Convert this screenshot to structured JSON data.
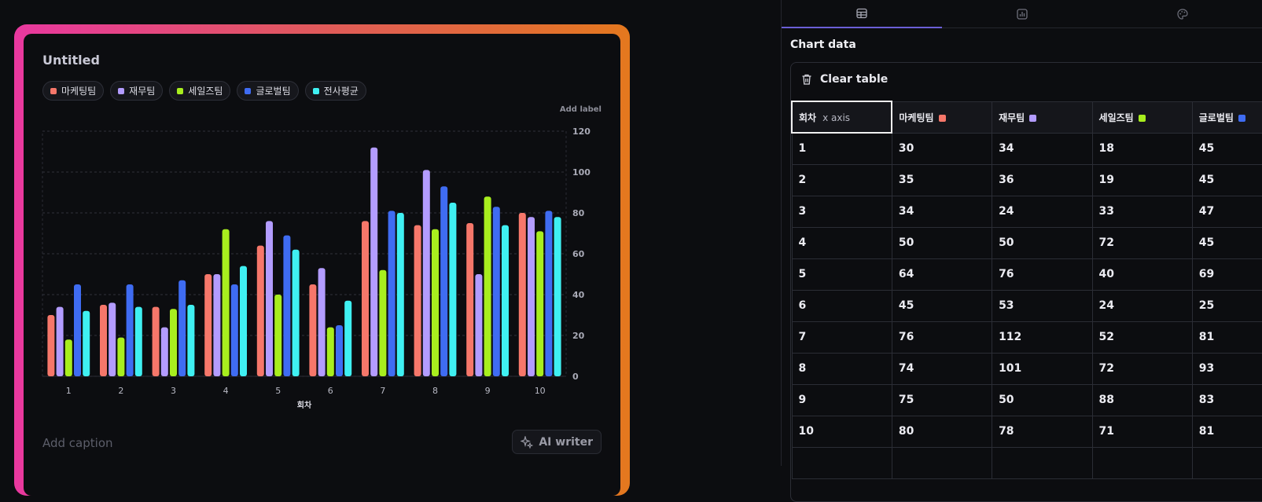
{
  "editor": {
    "title": "Untitled",
    "add_label": "Add label",
    "caption_placeholder": "Add caption",
    "ai_writer_label": "AI writer"
  },
  "legend": [
    {
      "name": "마케팅팀",
      "color": "#f6776a"
    },
    {
      "name": "재무팀",
      "color": "#b39cff"
    },
    {
      "name": "세일즈팀",
      "color": "#a8ee1e"
    },
    {
      "name": "글로벌팀",
      "color": "#3f6cf2"
    },
    {
      "name": "전사평균",
      "color": "#3ff0f2"
    }
  ],
  "chart_data": {
    "type": "bar",
    "categories": [
      "1",
      "2",
      "3",
      "4",
      "5",
      "6",
      "7",
      "8",
      "9",
      "10"
    ],
    "series": [
      {
        "name": "마케팅팀",
        "color": "#f6776a",
        "values": [
          30,
          35,
          34,
          50,
          64,
          45,
          76,
          74,
          75,
          80
        ]
      },
      {
        "name": "재무팀",
        "color": "#b39cff",
        "values": [
          34,
          36,
          24,
          50,
          76,
          53,
          112,
          101,
          50,
          78
        ]
      },
      {
        "name": "세일즈팀",
        "color": "#a8ee1e",
        "values": [
          18,
          19,
          33,
          72,
          40,
          24,
          52,
          72,
          88,
          71
        ]
      },
      {
        "name": "글로벌팀",
        "color": "#3f6cf2",
        "values": [
          45,
          45,
          47,
          45,
          69,
          25,
          81,
          93,
          83,
          81
        ]
      },
      {
        "name": "전사평균",
        "color": "#3ff0f2",
        "values": [
          32,
          34,
          35,
          54,
          62,
          37,
          80,
          85,
          74,
          78
        ]
      }
    ],
    "xlabel": "회차",
    "ylabel": "",
    "ylim": [
      0,
      120
    ],
    "yticks": [
      0,
      20,
      40,
      60,
      80,
      100,
      120
    ],
    "grid": true,
    "legend_position": "top-left"
  },
  "panel": {
    "tabs": [
      {
        "name": "table-icon",
        "active": true
      },
      {
        "name": "chart-icon",
        "active": false
      },
      {
        "name": "palette-icon",
        "active": false
      }
    ],
    "title": "Chart data",
    "clear_label": "Clear table",
    "x_axis_header": "회차",
    "x_axis_hint": "x axis",
    "headers": [
      {
        "label": "마케팅팀",
        "color": "#f6776a"
      },
      {
        "label": "재무팀",
        "color": "#b39cff"
      },
      {
        "label": "세일즈팀",
        "color": "#a8ee1e"
      },
      {
        "label": "글로벌팀",
        "color": "#3f6cf2"
      }
    ],
    "rows": [
      [
        "1",
        "30",
        "34",
        "18",
        "45"
      ],
      [
        "2",
        "35",
        "36",
        "19",
        "45"
      ],
      [
        "3",
        "34",
        "24",
        "33",
        "47"
      ],
      [
        "4",
        "50",
        "50",
        "72",
        "45"
      ],
      [
        "5",
        "64",
        "76",
        "40",
        "69"
      ],
      [
        "6",
        "45",
        "53",
        "24",
        "25"
      ],
      [
        "7",
        "76",
        "112",
        "52",
        "81"
      ],
      [
        "8",
        "74",
        "101",
        "72",
        "93"
      ],
      [
        "9",
        "75",
        "50",
        "88",
        "83"
      ],
      [
        "10",
        "80",
        "78",
        "71",
        "81"
      ]
    ]
  }
}
